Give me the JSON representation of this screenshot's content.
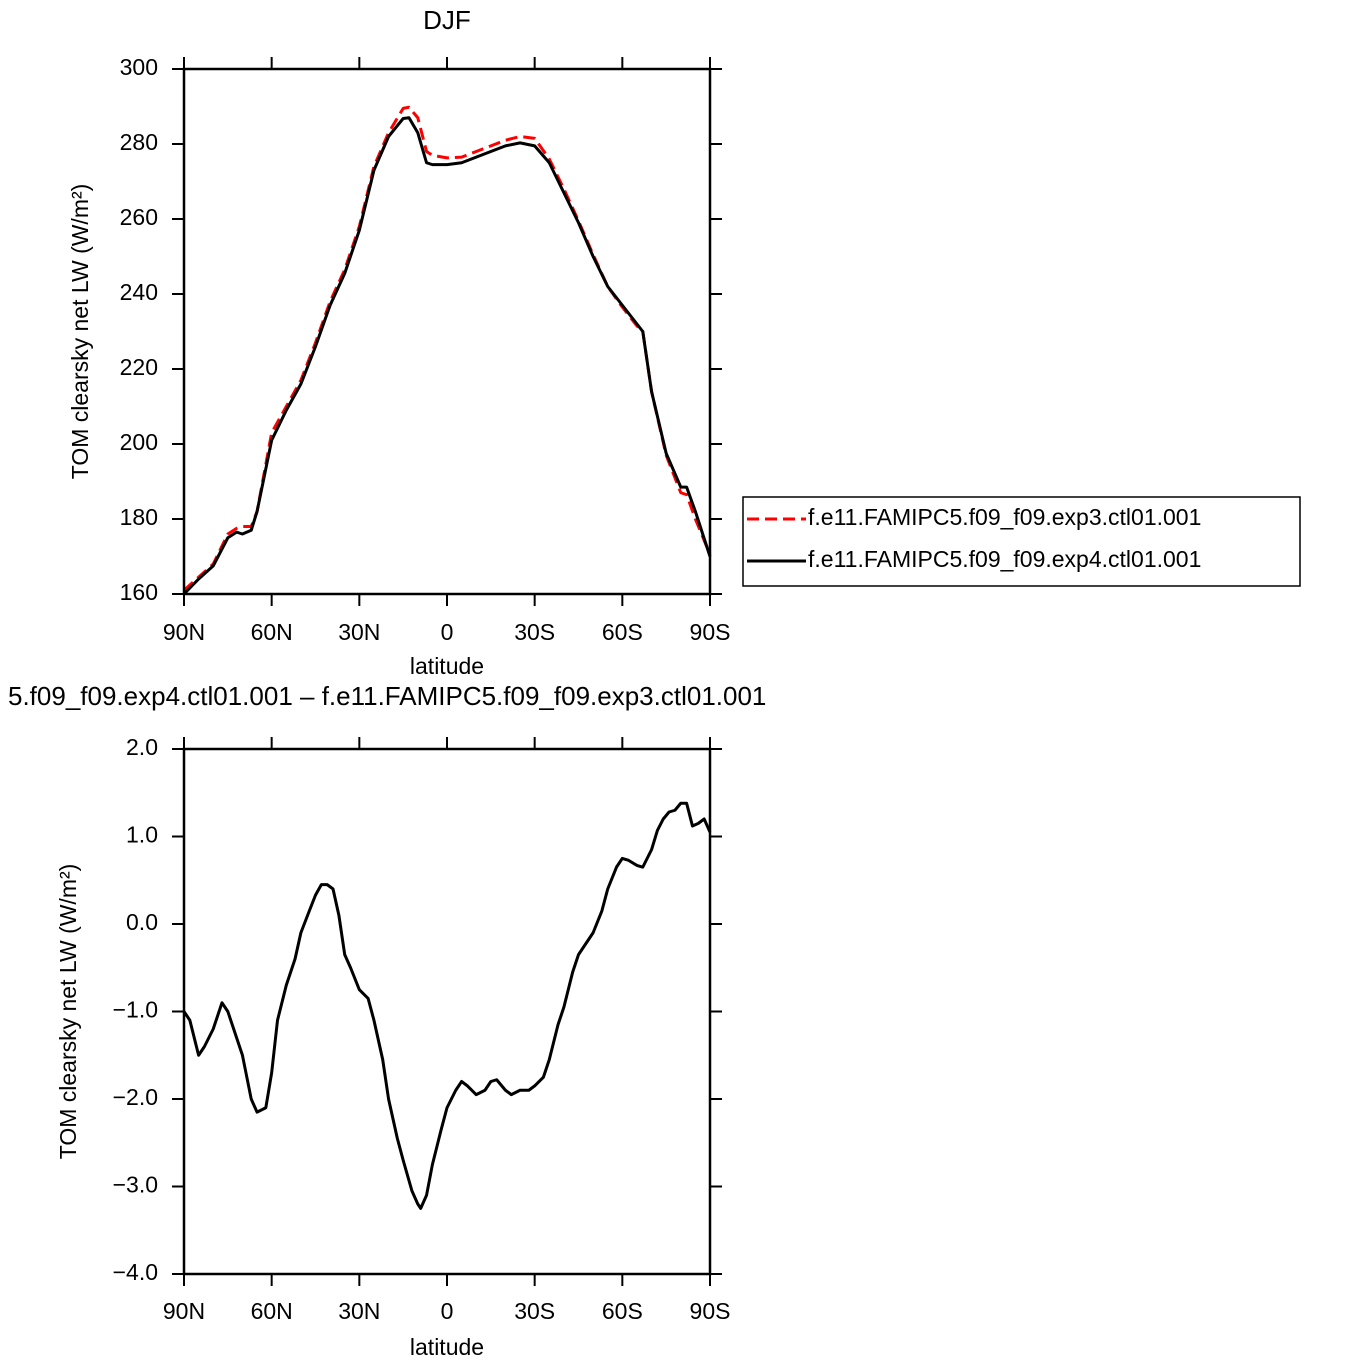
{
  "chart_data": [
    {
      "type": "line",
      "title": "DJF",
      "xlabel": "latitude",
      "ylabel": "TOM clearsky net LW (W/m²)",
      "xlim": [
        90,
        -90
      ],
      "xticks": [
        {
          "value": 90,
          "label": "90N"
        },
        {
          "value": 60,
          "label": "60N"
        },
        {
          "value": 30,
          "label": "30N"
        },
        0,
        {
          "value": -30,
          "label": "30S"
        },
        {
          "value": -60,
          "label": "60S"
        },
        {
          "value": -90,
          "label": "90S"
        }
      ],
      "ylim": [
        160,
        300
      ],
      "yticks": [
        160,
        180,
        200,
        220,
        240,
        260,
        280,
        300
      ],
      "legend": "right",
      "x": [
        90,
        85,
        80,
        75,
        72,
        70,
        67,
        65,
        60,
        55,
        50,
        45,
        40,
        35,
        30,
        25,
        20,
        15,
        13,
        10,
        7,
        5,
        0,
        -5,
        -10,
        -15,
        -20,
        -25,
        -30,
        -35,
        -40,
        -45,
        -50,
        -55,
        -60,
        -65,
        -67,
        -70,
        -75,
        -80,
        -82,
        -85,
        -90
      ],
      "series": [
        {
          "name": "f.e11.FAMIPC5.f09_f09.exp3.ctl01.001",
          "color": "#ff0000",
          "linestyle": "dashed",
          "values": [
            161,
            164.5,
            168,
            176,
            177.5,
            178,
            178,
            182,
            203,
            210,
            217,
            227,
            238,
            246.5,
            258,
            274,
            283,
            289.5,
            289.8,
            287,
            278,
            277,
            276.3,
            276.5,
            278,
            279.5,
            281,
            282,
            281.5,
            276,
            268,
            259.5,
            250.5,
            242,
            236.5,
            231.5,
            230,
            214,
            197,
            187,
            186.5,
            180,
            170.5
          ]
        },
        {
          "name": "f.e11.FAMIPC5.f09_f09.exp4.ctl01.001",
          "color": "#000000",
          "linestyle": "solid",
          "values": [
            160,
            164,
            167.5,
            175,
            176.5,
            176,
            177,
            182,
            201,
            209,
            216,
            226,
            237,
            245.5,
            257,
            273,
            282,
            286.8,
            287,
            283,
            275,
            274.5,
            274.5,
            275,
            276.5,
            278,
            279.5,
            280.3,
            279.5,
            275,
            267,
            259,
            250,
            242,
            237,
            232,
            230,
            214,
            197.5,
            188.5,
            188.5,
            182,
            170
          ]
        }
      ]
    },
    {
      "type": "line",
      "title": "5.f09_f09.exp4.ctl01.001 – f.e11.FAMIPC5.f09_f09.exp3.ctl01.001",
      "xlabel": "latitude",
      "ylabel": "TOM clearsky net LW (W/m²)",
      "xlim": [
        90,
        -90
      ],
      "xticks": [
        {
          "value": 90,
          "label": "90N"
        },
        {
          "value": 60,
          "label": "60N"
        },
        {
          "value": 30,
          "label": "30N"
        },
        0,
        {
          "value": -30,
          "label": "30S"
        },
        {
          "value": -60,
          "label": "60S"
        },
        {
          "value": -90,
          "label": "90S"
        }
      ],
      "ylim": [
        -4,
        2
      ],
      "yticks": [
        {
          "value": -4,
          "label": "−4.0"
        },
        {
          "value": -3,
          "label": "−3.0"
        },
        {
          "value": -2,
          "label": "−2.0"
        },
        {
          "value": -1,
          "label": "−1.0"
        },
        {
          "value": 0,
          "label": "0.0"
        },
        {
          "value": 1,
          "label": "1.0"
        },
        {
          "value": 2,
          "label": "2.0"
        }
      ],
      "color": "#000000",
      "x": [
        90,
        88,
        85,
        83,
        80,
        77,
        75,
        72,
        70,
        67,
        65,
        62,
        60,
        58,
        55,
        52,
        50,
        47,
        45,
        43,
        41,
        39,
        37,
        35,
        33,
        30,
        27,
        25,
        22,
        20,
        17,
        15,
        12,
        10,
        9,
        7,
        5,
        2,
        0,
        -3,
        -5,
        -7,
        -10,
        -13,
        -15,
        -17,
        -20,
        -22,
        -25,
        -28,
        -30,
        -33,
        -35,
        -38,
        -40,
        -43,
        -45,
        -48,
        -50,
        -53,
        -55,
        -58,
        -60,
        -62,
        -65,
        -67,
        -70,
        -72,
        -74,
        -76,
        -78,
        -80,
        -82,
        -84,
        -86,
        -88,
        -90
      ],
      "values": [
        -1.0,
        -1.1,
        -1.5,
        -1.4,
        -1.2,
        -0.9,
        -1.0,
        -1.3,
        -1.5,
        -2.0,
        -2.15,
        -2.1,
        -1.7,
        -1.1,
        -0.7,
        -0.4,
        -0.1,
        0.16,
        0.33,
        0.45,
        0.45,
        0.4,
        0.1,
        -0.35,
        -0.5,
        -0.75,
        -0.85,
        -1.1,
        -1.55,
        -2.0,
        -2.45,
        -2.7,
        -3.05,
        -3.2,
        -3.25,
        -3.1,
        -2.75,
        -2.35,
        -2.1,
        -1.9,
        -1.8,
        -1.85,
        -1.95,
        -1.9,
        -1.8,
        -1.78,
        -1.9,
        -1.95,
        -1.9,
        -1.9,
        -1.85,
        -1.75,
        -1.55,
        -1.15,
        -0.95,
        -0.55,
        -0.35,
        -0.2,
        -0.1,
        0.15,
        0.4,
        0.65,
        0.75,
        0.73,
        0.67,
        0.65,
        0.85,
        1.07,
        1.2,
        1.28,
        1.3,
        1.38,
        1.38,
        1.12,
        1.15,
        1.2,
        1.05
      ]
    }
  ]
}
